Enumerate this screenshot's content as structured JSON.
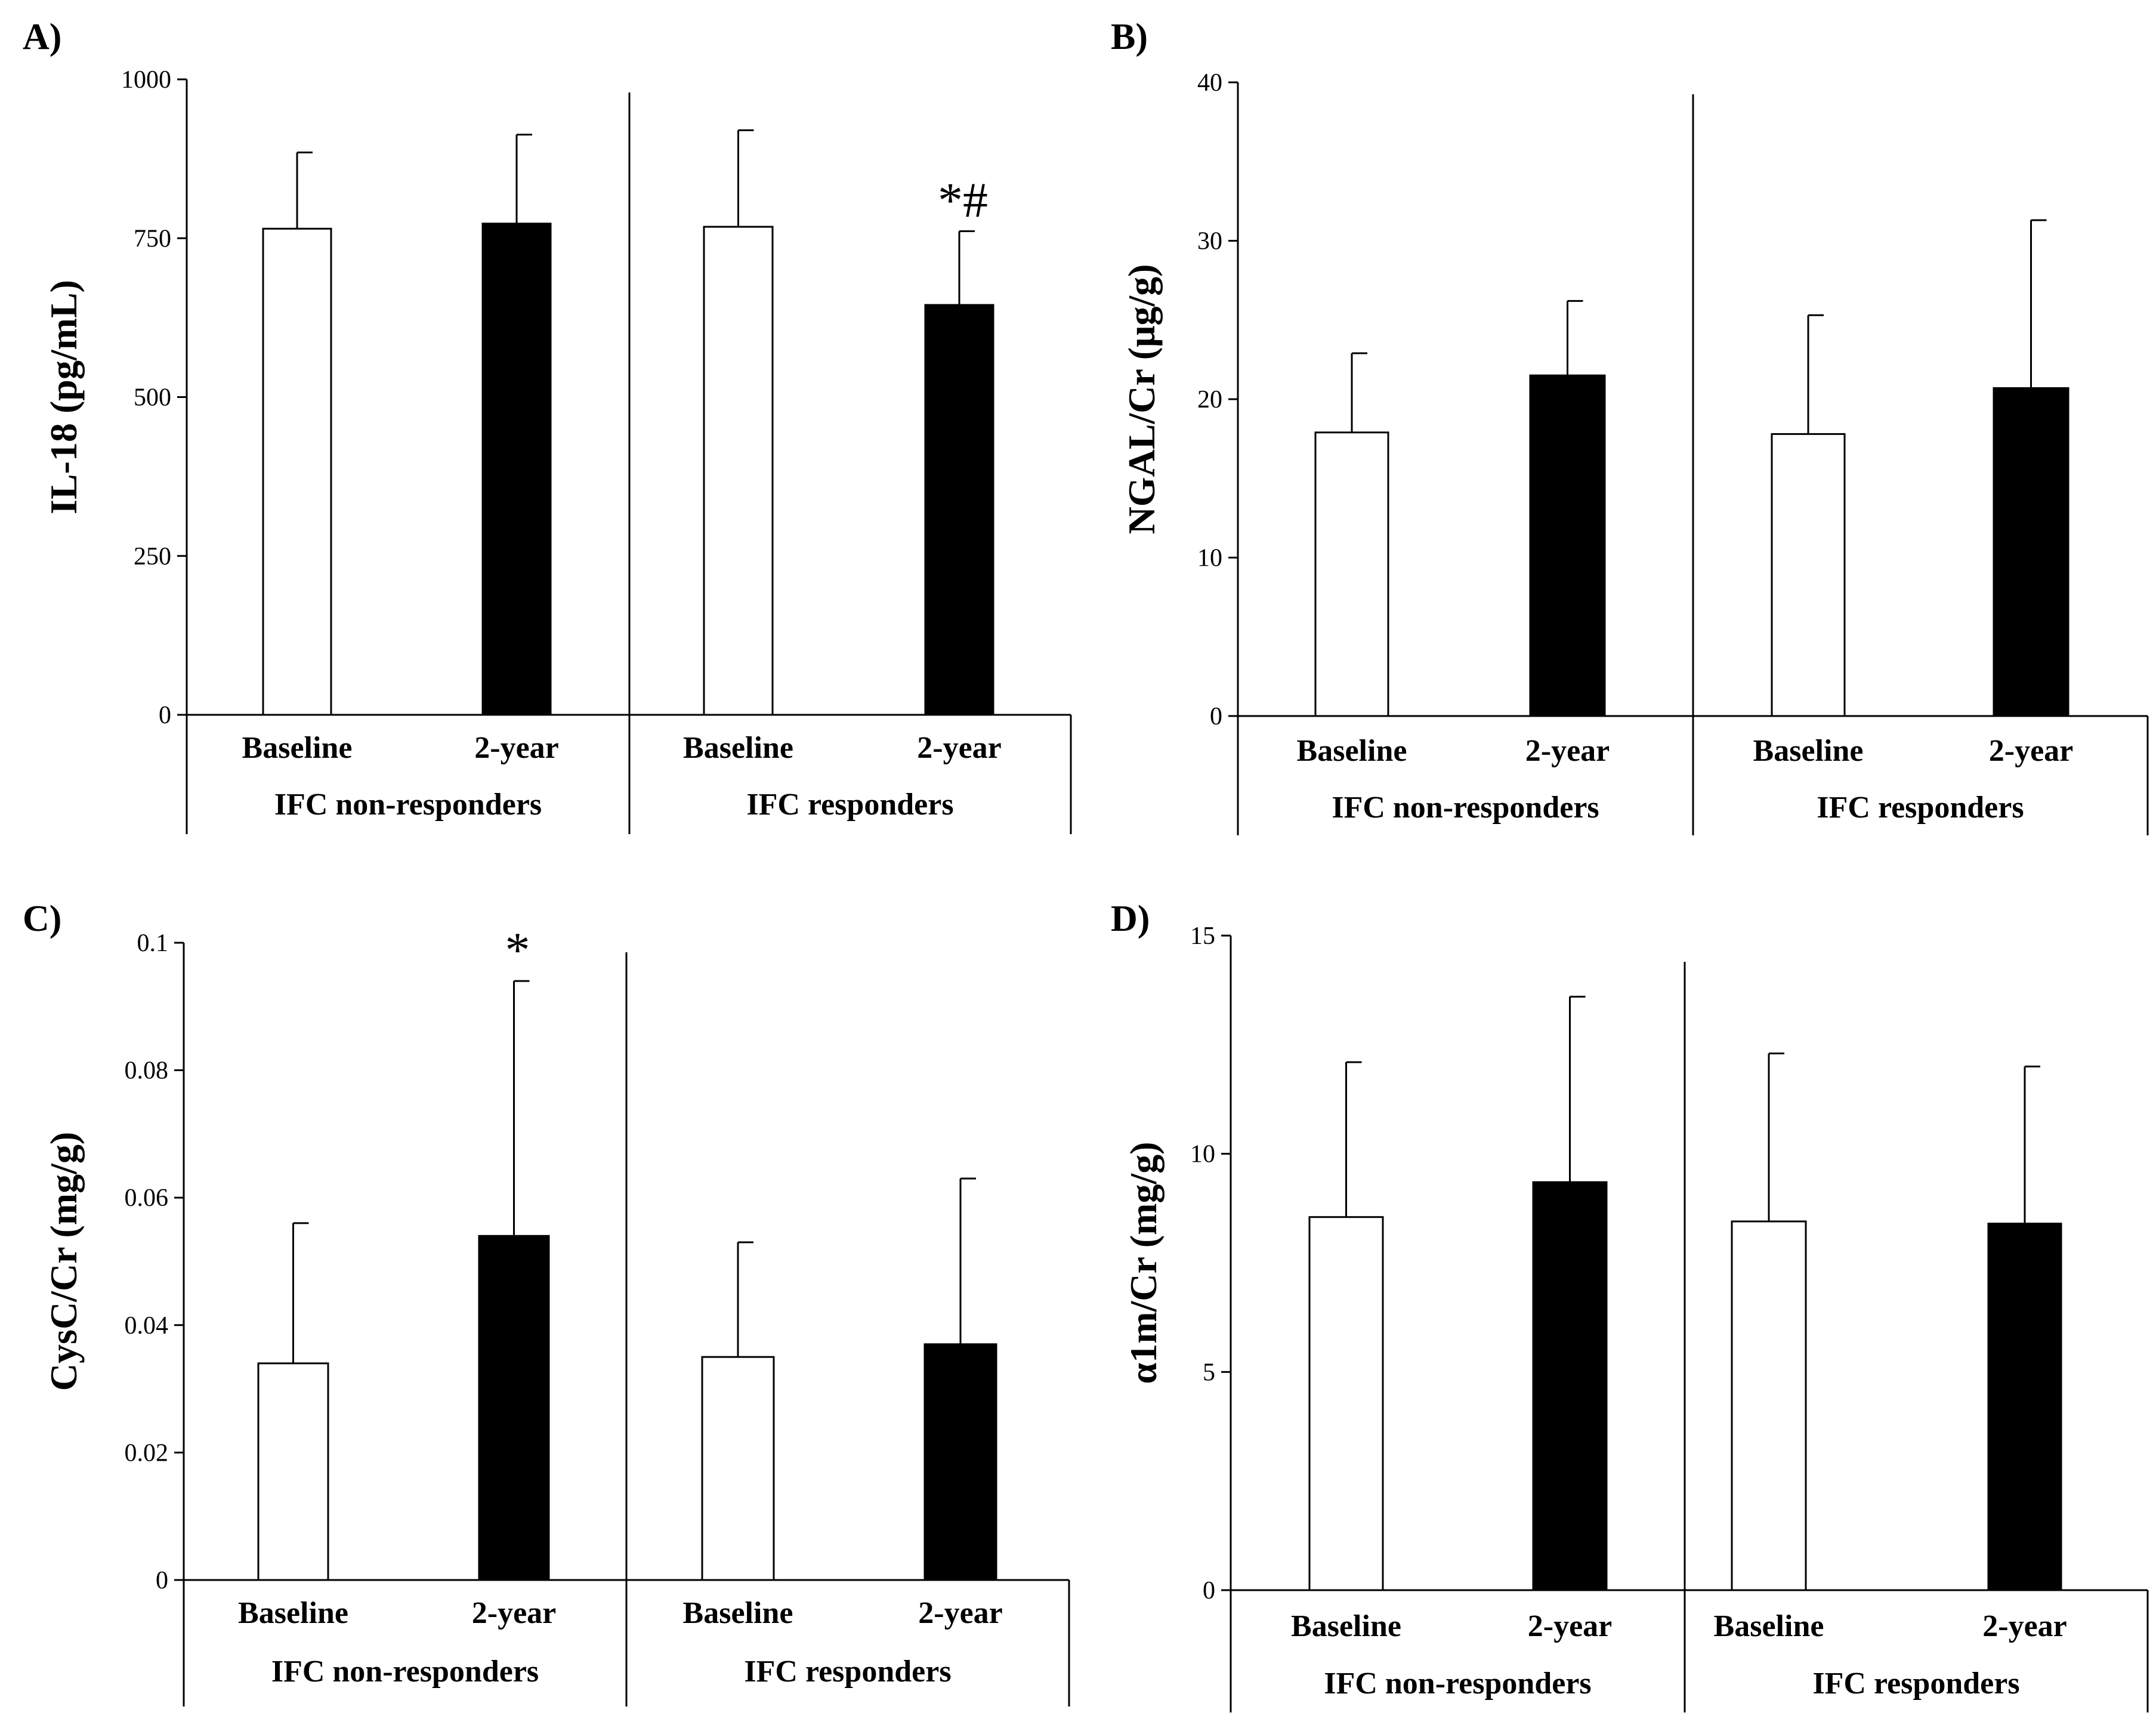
{
  "figure": {
    "background": "#ffffff",
    "bar_colors": {
      "baseline": "#ffffff",
      "two_year": "#000000",
      "outline": "#000000"
    }
  },
  "chart_data": [
    {
      "id": "A",
      "panel_label": "A)",
      "type": "bar",
      "ylabel": "IL-18 (pg/mL)",
      "ylim": [
        0,
        1000
      ],
      "yticks": [
        0,
        250,
        500,
        750,
        1000
      ],
      "ytick_labels": [
        "0",
        "250",
        "500",
        "750",
        "1000"
      ],
      "groups": [
        "IFC non-responders",
        "IFC responders"
      ],
      "categories": [
        "Baseline",
        "2-year"
      ],
      "series": [
        {
          "name": "Baseline",
          "values": [
            765,
            768
          ],
          "errors": [
            120,
            152
          ]
        },
        {
          "name": "2-year",
          "values": [
            773,
            645
          ],
          "errors": [
            140,
            116
          ]
        }
      ],
      "annotations": [
        {
          "text": "*#",
          "group": 1,
          "category": 1
        }
      ]
    },
    {
      "id": "B",
      "panel_label": "B)",
      "type": "bar",
      "ylabel": "NGAL/Cr (μg/g)",
      "ylim": [
        0,
        40
      ],
      "yticks": [
        0,
        10,
        20,
        30,
        40
      ],
      "ytick_labels": [
        "0",
        "10",
        "20",
        "30",
        "40"
      ],
      "groups": [
        "IFC non-responders",
        "IFC responders"
      ],
      "categories": [
        "Baseline",
        "2-year"
      ],
      "series": [
        {
          "name": "Baseline",
          "values": [
            17.9,
            17.8
          ],
          "errors": [
            5.0,
            7.5
          ]
        },
        {
          "name": "2-year",
          "values": [
            21.5,
            20.7
          ],
          "errors": [
            4.7,
            10.6
          ]
        }
      ],
      "annotations": []
    },
    {
      "id": "C",
      "panel_label": "C)",
      "type": "bar",
      "ylabel": "CysC/Cr (mg/g)",
      "ylim": [
        0,
        0.1
      ],
      "yticks": [
        0,
        0.02,
        0.04,
        0.06,
        0.08,
        0.1
      ],
      "ytick_labels": [
        "0",
        "0.02",
        "0.04",
        "0.06",
        "0.08",
        "0.1"
      ],
      "groups": [
        "IFC non-responders",
        "IFC responders"
      ],
      "categories": [
        "Baseline",
        "2-year"
      ],
      "series": [
        {
          "name": "Baseline",
          "values": [
            0.034,
            0.035
          ],
          "errors": [
            0.022,
            0.018
          ]
        },
        {
          "name": "2-year",
          "values": [
            0.054,
            0.037
          ],
          "errors": [
            0.04,
            0.026
          ]
        }
      ],
      "annotations": [
        {
          "text": "*",
          "group": 0,
          "category": 1
        }
      ]
    },
    {
      "id": "D",
      "panel_label": "D)",
      "type": "bar",
      "ylabel": "α1m/Cr (mg/g)",
      "ylim": [
        0,
        15
      ],
      "yticks": [
        0,
        5,
        10,
        15
      ],
      "ytick_labels": [
        "0",
        "5",
        "10",
        "15"
      ],
      "groups": [
        "IFC non-responders",
        "IFC responders"
      ],
      "categories": [
        "Baseline",
        "2-year"
      ],
      "series": [
        {
          "name": "Baseline",
          "values": [
            8.55,
            8.45
          ],
          "errors": [
            3.55,
            3.85
          ]
        },
        {
          "name": "2-year",
          "values": [
            9.35,
            8.4
          ],
          "errors": [
            4.25,
            3.6
          ]
        }
      ],
      "annotations": []
    }
  ]
}
